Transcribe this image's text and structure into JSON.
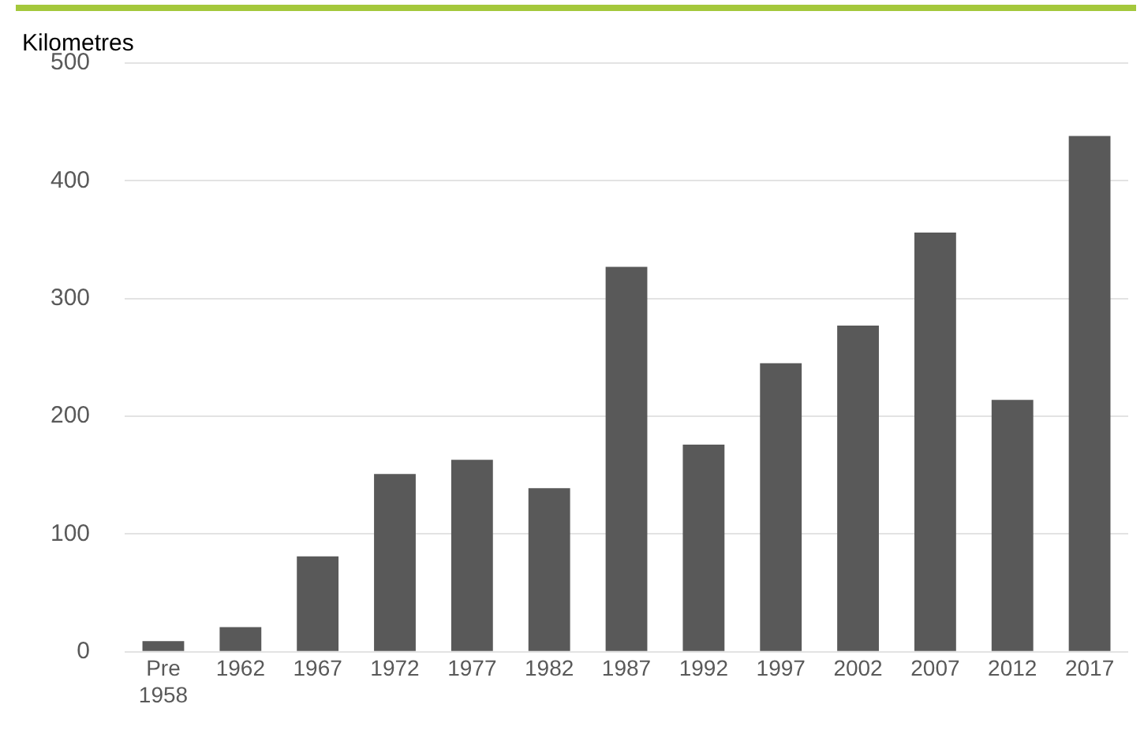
{
  "chart_data": {
    "type": "bar",
    "ylabel": "Kilometres",
    "categories": [
      "Pre 1958",
      "1962",
      "1967",
      "1972",
      "1977",
      "1982",
      "1987",
      "1992",
      "1997",
      "2002",
      "2007",
      "2012",
      "2017"
    ],
    "values": [
      9,
      21,
      81,
      151,
      163,
      139,
      327,
      176,
      245,
      277,
      356,
      214,
      438
    ],
    "color": "#595959",
    "ylim": [
      0,
      500
    ],
    "yticks": [
      0,
      100,
      200,
      300,
      400,
      500
    ],
    "grid": "y",
    "legend": false
  }
}
